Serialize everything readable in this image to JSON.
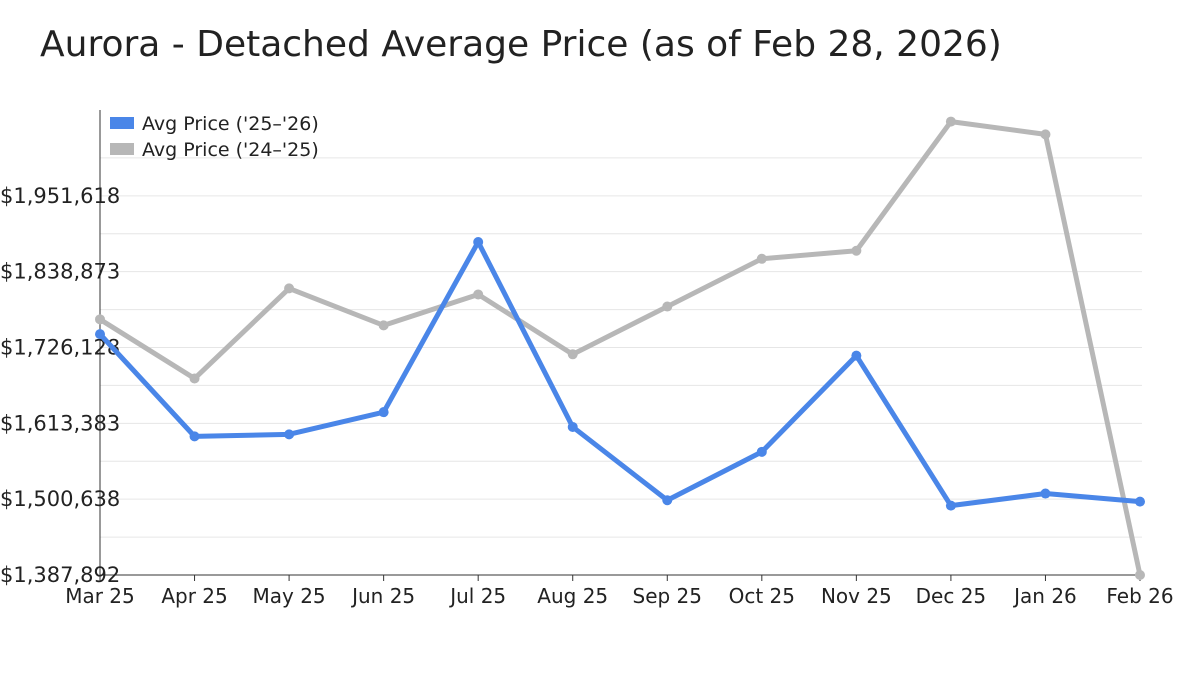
{
  "title": "Aurora - Detached Average Price (as of Feb 28, 2026)",
  "chart_data": {
    "type": "line",
    "categories": [
      "Mar 25",
      "Apr 25",
      "May 25",
      "Jun 25",
      "Jul 25",
      "Aug 25",
      "Sep 25",
      "Oct 25",
      "Nov 25",
      "Dec 25",
      "Jan 26",
      "Feb 26"
    ],
    "series": [
      {
        "name": "Avg Price ('25–'26)",
        "color": "#4a86e8",
        "values": [
          1746000,
          1594000,
          1597000,
          1630000,
          1883000,
          1608000,
          1499000,
          1571000,
          1714000,
          1491000,
          1509000,
          1497000
        ]
      },
      {
        "name": "Avg Price ('24–'25)",
        "color": "#b7b7b7",
        "values": [
          1768000,
          1680000,
          1814000,
          1759000,
          1805000,
          1716000,
          1787000,
          1858000,
          1870000,
          2062000,
          2043000,
          1387892
        ]
      }
    ],
    "yticks": [
      "$1,387,892",
      "$1,500,638",
      "$1,613,383",
      "$1,726,128",
      "$1,838,873",
      "$1,951,618"
    ],
    "ylim": [
      1387892,
      2064364
    ],
    "xlabel": "",
    "ylabel": "",
    "grid": true,
    "legend": "top-left"
  }
}
